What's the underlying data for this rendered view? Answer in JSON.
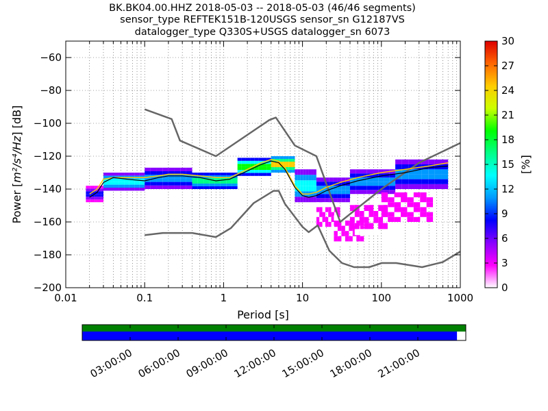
{
  "title": {
    "line1": "BK.BK04.00.HHZ   2018-05-03 -- 2018-05-03  (46/46 segments)",
    "line2": "sensor_type REFTEK151B-120USGS sensor_sn G12187VS",
    "line3": "datalogger_type Q330S+USGS datalogger_sn 6073"
  },
  "chart_data": {
    "type": "heatmap",
    "xlabel": "Period [s]",
    "ylabel_prefix": "Power [",
    "ylabel_units": "m²/s⁴/Hz",
    "ylabel_suffix": "] [dB]",
    "xscale": "log",
    "xlim": [
      0.01,
      1000
    ],
    "ylim": [
      -200,
      -50
    ],
    "x_ticks": [
      {
        "value": 0.01,
        "label": "0.01"
      },
      {
        "value": 0.1,
        "label": "0.1"
      },
      {
        "value": 1,
        "label": "1"
      },
      {
        "value": 10,
        "label": "10"
      },
      {
        "value": 100,
        "label": "100"
      },
      {
        "value": 1000,
        "label": "1000"
      }
    ],
    "y_ticks": [
      -60,
      -80,
      -100,
      -120,
      -140,
      -160,
      -180,
      -200
    ],
    "grid": true,
    "colorbar": {
      "label": "[%]",
      "min": 0,
      "max": 30,
      "ticks": [
        0,
        3,
        6,
        9,
        12,
        15,
        18,
        21,
        24,
        27,
        30
      ],
      "colors": [
        "#ffffff",
        "#ff00ff",
        "#8800ff",
        "#0000ff",
        "#0099ff",
        "#00ffff",
        "#00ff88",
        "#00ff00",
        "#ccff00",
        "#ffcc00",
        "#ff6600",
        "#dd0000"
      ]
    },
    "noise_model_high": {
      "x": [
        0.1,
        0.22,
        0.28,
        0.8,
        3.8,
        4.6,
        8,
        15,
        30,
        100,
        300,
        1000
      ],
      "y": [
        -91.5,
        -97.4,
        -110.5,
        -120,
        -98,
        -96.5,
        -113.5,
        -120,
        -160,
        -140,
        -124,
        -112
      ]
    },
    "noise_model_low": {
      "x": [
        0.1,
        0.17,
        0.4,
        0.8,
        1.24,
        2.4,
        4.3,
        5,
        6,
        10,
        12,
        15.6,
        21.9,
        31.6,
        45,
        70,
        101,
        154,
        328,
        600,
        1000
      ],
      "y": [
        -168,
        -166.7,
        -166.7,
        -169.2,
        -163.7,
        -148.6,
        -141.1,
        -141.1,
        -149,
        -163,
        -166.2,
        -162.1,
        -177.5,
        -185,
        -187.5,
        -187.5,
        -185,
        -185,
        -187.5,
        -184.4,
        -178
      ]
    },
    "mean_curve": {
      "x": [
        0.02,
        0.025,
        0.03,
        0.04,
        0.06,
        0.1,
        0.15,
        0.2,
        0.3,
        0.5,
        0.8,
        1.2,
        2,
        3,
        4,
        5,
        6,
        7,
        8,
        10,
        12,
        15,
        20,
        30,
        50,
        100,
        200,
        400,
        700
      ],
      "y": [
        -145,
        -142,
        -136,
        -133,
        -134,
        -135,
        -133,
        -132,
        -132,
        -133,
        -135,
        -134,
        -129,
        -125,
        -123,
        -124,
        -128,
        -134,
        -139,
        -144,
        -145,
        -144,
        -141,
        -138,
        -135,
        -132,
        -130,
        -127,
        -126
      ]
    },
    "mode_curve": {
      "x": [
        0.02,
        0.025,
        0.03,
        0.04,
        0.06,
        0.1,
        0.15,
        0.2,
        0.3,
        0.5,
        0.8,
        1.2,
        2,
        3,
        4,
        5,
        6,
        7,
        8,
        10,
        12,
        15,
        20,
        30,
        50,
        100,
        200,
        400,
        700
      ],
      "y": [
        -143,
        -140,
        -134,
        -133,
        -133,
        -133,
        -132,
        -131,
        -131,
        -132,
        -133,
        -133,
        -128,
        -124,
        -122,
        -123,
        -127,
        -133,
        -138,
        -143,
        -143,
        -142,
        -139,
        -136,
        -133,
        -130,
        -128,
        -126,
        -124
      ]
    },
    "density_bands": [
      {
        "x": [
          0.018,
          0.03
        ],
        "y": [
          -148,
          -138
        ],
        "pct": 8
      },
      {
        "x": [
          0.03,
          0.1
        ],
        "y": [
          -141,
          -130
        ],
        "pct": 12
      },
      {
        "x": [
          0.1,
          0.4
        ],
        "y": [
          -140,
          -127
        ],
        "pct": 10
      },
      {
        "x": [
          0.4,
          1.5
        ],
        "y": [
          -140,
          -130
        ],
        "pct": 14
      },
      {
        "x": [
          1.5,
          4
        ],
        "y": [
          -132,
          -121
        ],
        "pct": 17
      },
      {
        "x": [
          4,
          8
        ],
        "y": [
          -130,
          -120
        ],
        "pct": 22
      },
      {
        "x": [
          8,
          15
        ],
        "y": [
          -148,
          -128
        ],
        "pct": 13
      },
      {
        "x": [
          15,
          40
        ],
        "y": [
          -148,
          -133
        ],
        "pct": 11
      },
      {
        "x": [
          40,
          150
        ],
        "y": [
          -143,
          -128
        ],
        "pct": 9
      },
      {
        "x": [
          150,
          700
        ],
        "y": [
          -140,
          -122
        ],
        "pct": 10
      }
    ],
    "sparse_tail": [
      {
        "x": [
          15,
          30
        ],
        "y": [
          -166,
          -148
        ],
        "pct": 2
      },
      {
        "x": [
          25,
          60
        ],
        "y": [
          -175,
          -156
        ],
        "pct": 2
      },
      {
        "x": [
          40,
          120
        ],
        "y": [
          -168,
          -146
        ],
        "pct": 2
      },
      {
        "x": [
          100,
          450
        ],
        "y": [
          -160,
          -142
        ],
        "pct": 3
      }
    ]
  },
  "timeline": {
    "labels": [
      "03:00:00",
      "06:00:00",
      "09:00:00",
      "12:00:00",
      "15:00:00",
      "18:00:00",
      "21:00:00"
    ],
    "coverage_top": 1.0,
    "coverage_bottom": 0.977,
    "colors": {
      "top": "#008000",
      "bottom": "#0000ff"
    }
  }
}
